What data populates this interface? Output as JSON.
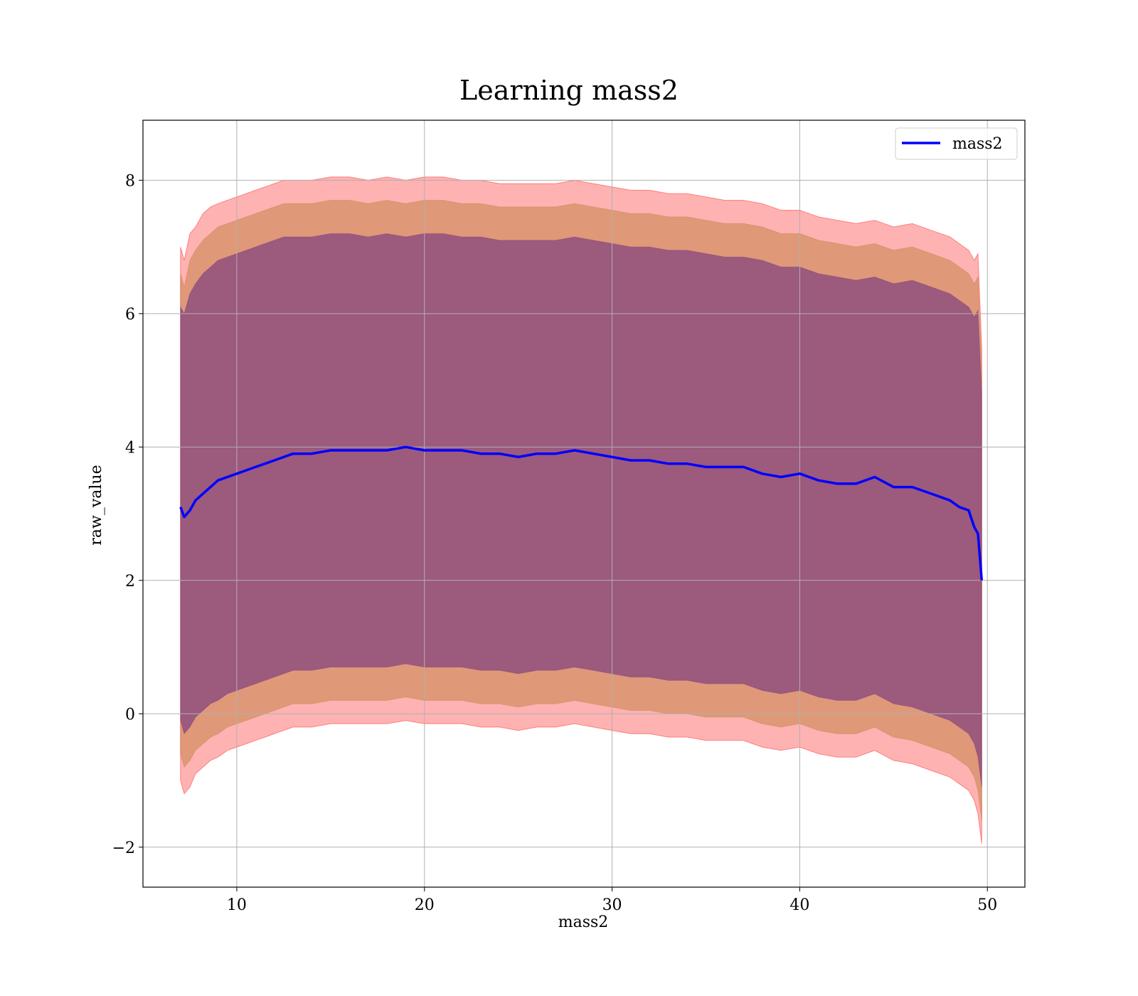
{
  "chart_data": {
    "type": "line",
    "title": "Learning mass2",
    "xlabel": "mass2",
    "ylabel": "raw_value",
    "xlim": [
      5,
      52
    ],
    "ylim": [
      -2.6,
      8.9
    ],
    "xticks": [
      10,
      20,
      30,
      40,
      50
    ],
    "yticks": [
      -2,
      0,
      2,
      4,
      6,
      8
    ],
    "ytick_labels": [
      "−2",
      "0",
      "2",
      "4",
      "6",
      "8"
    ],
    "grid": true,
    "legend_position": "top-right",
    "colors": {
      "mean_line": "#0000ff",
      "outer_band": "#ff0000",
      "middle_band": "#bf7f3f",
      "inner_band": "#7f3f7f"
    },
    "series": [
      {
        "name": "mass2",
        "x": [
          7.0,
          7.2,
          7.5,
          7.8,
          8.2,
          8.6,
          9.0,
          9.5,
          10.0,
          10.5,
          11.0,
          11.5,
          12.0,
          12.5,
          13.0,
          14.0,
          15.0,
          16.0,
          17.0,
          18.0,
          19.0,
          20.0,
          21.0,
          22.0,
          23.0,
          24.0,
          25.0,
          26.0,
          27.0,
          28.0,
          29.0,
          30.0,
          31.0,
          32.0,
          33.0,
          34.0,
          35.0,
          36.0,
          37.0,
          38.0,
          39.0,
          40.0,
          41.0,
          42.0,
          43.0,
          44.0,
          45.0,
          46.0,
          47.0,
          48.0,
          48.5,
          49.0,
          49.3,
          49.5,
          49.7
        ],
        "values": [
          3.1,
          2.95,
          3.05,
          3.2,
          3.3,
          3.4,
          3.5,
          3.55,
          3.6,
          3.65,
          3.7,
          3.75,
          3.8,
          3.85,
          3.9,
          3.9,
          3.95,
          3.95,
          3.95,
          3.95,
          4.0,
          3.95,
          3.95,
          3.95,
          3.9,
          3.9,
          3.85,
          3.9,
          3.9,
          3.95,
          3.9,
          3.85,
          3.8,
          3.8,
          3.75,
          3.75,
          3.7,
          3.7,
          3.7,
          3.6,
          3.55,
          3.6,
          3.5,
          3.45,
          3.45,
          3.55,
          3.4,
          3.4,
          3.3,
          3.2,
          3.1,
          3.05,
          2.8,
          2.7,
          2.0
        ]
      }
    ],
    "bands": [
      {
        "x": [
          7.0,
          7.2,
          7.5,
          7.8,
          8.2,
          8.6,
          9.0,
          9.5,
          10.0,
          10.5,
          11.0,
          11.5,
          12.0,
          12.5,
          13.0,
          14.0,
          15.0,
          16.0,
          17.0,
          18.0,
          19.0,
          20.0,
          21.0,
          22.0,
          23.0,
          24.0,
          25.0,
          26.0,
          27.0,
          28.0,
          29.0,
          30.0,
          31.0,
          32.0,
          33.0,
          34.0,
          35.0,
          36.0,
          37.0,
          38.0,
          39.0,
          40.0,
          41.0,
          42.0,
          43.0,
          44.0,
          45.0,
          46.0,
          47.0,
          48.0,
          48.5,
          49.0,
          49.3,
          49.5,
          49.7
        ],
        "upper": [
          7.0,
          6.8,
          7.2,
          7.3,
          7.5,
          7.6,
          7.65,
          7.7,
          7.75,
          7.8,
          7.85,
          7.9,
          7.95,
          8.0,
          8.0,
          8.0,
          8.05,
          8.05,
          8.0,
          8.05,
          8.0,
          8.05,
          8.05,
          8.0,
          8.0,
          7.95,
          7.95,
          7.95,
          7.95,
          8.0,
          7.95,
          7.9,
          7.85,
          7.85,
          7.8,
          7.8,
          7.75,
          7.7,
          7.7,
          7.65,
          7.55,
          7.55,
          7.45,
          7.4,
          7.35,
          7.4,
          7.3,
          7.35,
          7.25,
          7.15,
          7.05,
          6.95,
          6.8,
          6.9,
          5.5
        ],
        "lower": [
          -1.0,
          -1.2,
          -1.1,
          -0.9,
          -0.8,
          -0.7,
          -0.65,
          -0.55,
          -0.5,
          -0.45,
          -0.4,
          -0.35,
          -0.3,
          -0.25,
          -0.2,
          -0.2,
          -0.15,
          -0.15,
          -0.15,
          -0.15,
          -0.1,
          -0.15,
          -0.15,
          -0.15,
          -0.2,
          -0.2,
          -0.25,
          -0.2,
          -0.2,
          -0.15,
          -0.2,
          -0.25,
          -0.3,
          -0.3,
          -0.35,
          -0.35,
          -0.4,
          -0.4,
          -0.4,
          -0.5,
          -0.55,
          -0.5,
          -0.6,
          -0.65,
          -0.65,
          -0.55,
          -0.7,
          -0.75,
          -0.85,
          -0.95,
          -1.05,
          -1.15,
          -1.3,
          -1.5,
          -1.95
        ],
        "opacity": 0.3,
        "color": "#ff0000"
      },
      {
        "x": [
          7.0,
          7.2,
          7.5,
          7.8,
          8.2,
          8.6,
          9.0,
          9.5,
          10.0,
          10.5,
          11.0,
          11.5,
          12.0,
          12.5,
          13.0,
          14.0,
          15.0,
          16.0,
          17.0,
          18.0,
          19.0,
          20.0,
          21.0,
          22.0,
          23.0,
          24.0,
          25.0,
          26.0,
          27.0,
          28.0,
          29.0,
          30.0,
          31.0,
          32.0,
          33.0,
          34.0,
          35.0,
          36.0,
          37.0,
          38.0,
          39.0,
          40.0,
          41.0,
          42.0,
          43.0,
          44.0,
          45.0,
          46.0,
          47.0,
          48.0,
          48.5,
          49.0,
          49.3,
          49.5,
          49.7
        ],
        "upper": [
          6.6,
          6.4,
          6.8,
          6.95,
          7.1,
          7.2,
          7.3,
          7.35,
          7.4,
          7.45,
          7.5,
          7.55,
          7.6,
          7.65,
          7.65,
          7.65,
          7.7,
          7.7,
          7.65,
          7.7,
          7.65,
          7.7,
          7.7,
          7.65,
          7.65,
          7.6,
          7.6,
          7.6,
          7.6,
          7.65,
          7.6,
          7.55,
          7.5,
          7.5,
          7.45,
          7.45,
          7.4,
          7.35,
          7.35,
          7.3,
          7.2,
          7.2,
          7.1,
          7.05,
          7.0,
          7.05,
          6.95,
          7.0,
          6.9,
          6.8,
          6.7,
          6.6,
          6.45,
          6.55,
          5.2
        ],
        "lower": [
          -0.6,
          -0.8,
          -0.7,
          -0.55,
          -0.45,
          -0.35,
          -0.3,
          -0.2,
          -0.15,
          -0.1,
          -0.05,
          0.0,
          0.05,
          0.1,
          0.15,
          0.15,
          0.2,
          0.2,
          0.2,
          0.2,
          0.25,
          0.2,
          0.2,
          0.2,
          0.15,
          0.15,
          0.1,
          0.15,
          0.15,
          0.2,
          0.15,
          0.1,
          0.05,
          0.05,
          0.0,
          0.0,
          -0.05,
          -0.05,
          -0.05,
          -0.15,
          -0.2,
          -0.15,
          -0.25,
          -0.3,
          -0.3,
          -0.2,
          -0.35,
          -0.4,
          -0.5,
          -0.6,
          -0.7,
          -0.8,
          -0.95,
          -1.15,
          -1.6
        ],
        "opacity": 0.5,
        "color": "#bf7f3f"
      },
      {
        "x": [
          7.0,
          7.2,
          7.5,
          7.8,
          8.2,
          8.6,
          9.0,
          9.5,
          10.0,
          10.5,
          11.0,
          11.5,
          12.0,
          12.5,
          13.0,
          14.0,
          15.0,
          16.0,
          17.0,
          18.0,
          19.0,
          20.0,
          21.0,
          22.0,
          23.0,
          24.0,
          25.0,
          26.0,
          27.0,
          28.0,
          29.0,
          30.0,
          31.0,
          32.0,
          33.0,
          34.0,
          35.0,
          36.0,
          37.0,
          38.0,
          39.0,
          40.0,
          41.0,
          42.0,
          43.0,
          44.0,
          45.0,
          46.0,
          47.0,
          48.0,
          48.5,
          49.0,
          49.3,
          49.5,
          49.7
        ],
        "upper": [
          6.1,
          6.0,
          6.3,
          6.45,
          6.6,
          6.7,
          6.8,
          6.85,
          6.9,
          6.95,
          7.0,
          7.05,
          7.1,
          7.15,
          7.15,
          7.15,
          7.2,
          7.2,
          7.15,
          7.2,
          7.15,
          7.2,
          7.2,
          7.15,
          7.15,
          7.1,
          7.1,
          7.1,
          7.1,
          7.15,
          7.1,
          7.05,
          7.0,
          7.0,
          6.95,
          6.95,
          6.9,
          6.85,
          6.85,
          6.8,
          6.7,
          6.7,
          6.6,
          6.55,
          6.5,
          6.55,
          6.45,
          6.5,
          6.4,
          6.3,
          6.2,
          6.1,
          5.95,
          6.05,
          4.8
        ],
        "lower": [
          -0.1,
          -0.3,
          -0.2,
          -0.05,
          0.05,
          0.15,
          0.2,
          0.3,
          0.35,
          0.4,
          0.45,
          0.5,
          0.55,
          0.6,
          0.65,
          0.65,
          0.7,
          0.7,
          0.7,
          0.7,
          0.75,
          0.7,
          0.7,
          0.7,
          0.65,
          0.65,
          0.6,
          0.65,
          0.65,
          0.7,
          0.65,
          0.6,
          0.55,
          0.55,
          0.5,
          0.5,
          0.45,
          0.45,
          0.45,
          0.35,
          0.3,
          0.35,
          0.25,
          0.2,
          0.2,
          0.3,
          0.15,
          0.1,
          0.0,
          -0.1,
          -0.2,
          -0.3,
          -0.45,
          -0.65,
          -1.1
        ],
        "opacity": 0.7,
        "color": "#7f3f7f"
      }
    ]
  }
}
